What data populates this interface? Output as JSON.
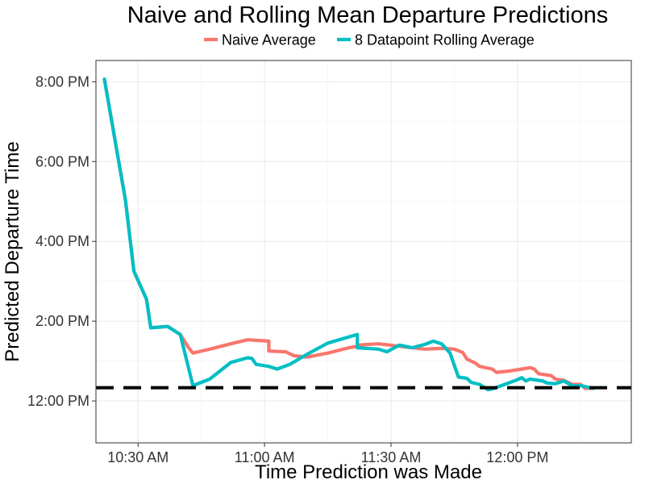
{
  "chart_data": {
    "type": "line",
    "title": "Naive and Rolling Mean Departure Predictions",
    "xlabel": "Time Prediction was Made",
    "ylabel": "Predicted Departure Time",
    "x_axis": {
      "unit": "clock time",
      "range": [
        "10:20 AM",
        "12:27 PM"
      ],
      "ticks": [
        "10:30 AM",
        "11:00 AM",
        "11:30 AM",
        "12:00 PM"
      ]
    },
    "y_axis": {
      "unit": "clock time",
      "range": [
        "10:57 AM",
        "8:32 PM"
      ],
      "ticks": [
        "12:00 PM",
        "2:00 PM",
        "4:00 PM",
        "6:00 PM",
        "8:00 PM"
      ]
    },
    "grid": true,
    "legend_position": "top",
    "reference_line": {
      "y": "12:20 PM",
      "style": "dashed",
      "color": "#000000"
    },
    "series": [
      {
        "name": "Naive Average",
        "color": "#F8766D",
        "points": [
          [
            "10:22 AM",
            "8:04 PM"
          ],
          [
            "10:27 AM",
            "5:02 PM"
          ],
          [
            "10:29 AM",
            "3:15 PM"
          ],
          [
            "10:32 AM",
            "2:33 PM"
          ],
          [
            "10:33 AM",
            "1:50 PM"
          ],
          [
            "10:37 AM",
            "1:52 PM"
          ],
          [
            "10:40 AM",
            "1:40 PM"
          ],
          [
            "10:42 AM",
            "1:20 PM"
          ],
          [
            "10:43 AM",
            "1:12 PM"
          ],
          [
            "10:47 AM",
            "1:18 PM"
          ],
          [
            "10:52 AM",
            "1:26 PM"
          ],
          [
            "10:56 AM",
            "1:32 PM"
          ],
          [
            "11:01 AM",
            "1:30 PM"
          ],
          [
            "11:01 AM",
            "1:15 PM"
          ],
          [
            "11:05 AM",
            "1:14 PM"
          ],
          [
            "11:07 AM",
            "1:08 PM"
          ],
          [
            "11:10 AM",
            "1:06 PM"
          ],
          [
            "11:15 AM",
            "1:12 PM"
          ],
          [
            "11:20 AM",
            "1:20 PM"
          ],
          [
            "11:22 AM",
            "1:22 PM"
          ],
          [
            "11:22 AM",
            "1:24 PM"
          ],
          [
            "11:27 AM",
            "1:26 PM"
          ],
          [
            "11:31 AM",
            "1:23 PM"
          ],
          [
            "11:35 AM",
            "1:20 PM"
          ],
          [
            "11:38 AM",
            "1:18 PM"
          ],
          [
            "11:42 AM",
            "1:19 PM"
          ],
          [
            "11:45 AM",
            "1:18 PM"
          ],
          [
            "11:47 AM",
            "1:13 PM"
          ],
          [
            "11:48 AM",
            "1:03 PM"
          ],
          [
            "11:50 AM",
            "0:57 PM"
          ],
          [
            "11:51 AM",
            "0:52 PM"
          ],
          [
            "11:54 AM",
            "0:48 PM"
          ],
          [
            "11:55 AM",
            "0:43 PM"
          ],
          [
            "11:58 AM",
            "0:45 PM"
          ],
          [
            "12:01 PM",
            "0:48 PM"
          ],
          [
            "12:03 PM",
            "0:50 PM"
          ],
          [
            "12:04 PM",
            "0:48 PM"
          ],
          [
            "12:05 PM",
            "0:41 PM"
          ],
          [
            "12:08 PM",
            "0:38 PM"
          ],
          [
            "12:09 PM",
            "0:33 PM"
          ],
          [
            "12:11 PM",
            "0:31 PM"
          ],
          [
            "12:13 PM",
            "0:25 PM"
          ],
          [
            "12:15 PM",
            "0:25 PM"
          ],
          [
            "12:16 PM",
            "0:19 PM"
          ],
          [
            "12:18 PM",
            "0:19 PM"
          ]
        ]
      },
      {
        "name": "8 Datapoint Rolling Average",
        "color": "#00BFC4",
        "points": [
          [
            "10:22 AM",
            "8:04 PM"
          ],
          [
            "10:27 AM",
            "5:02 PM"
          ],
          [
            "10:29 AM",
            "3:15 PM"
          ],
          [
            "10:32 AM",
            "2:33 PM"
          ],
          [
            "10:33 AM",
            "1:50 PM"
          ],
          [
            "10:37 AM",
            "1:52 PM"
          ],
          [
            "10:40 AM",
            "1:40 PM"
          ],
          [
            "10:43 AM",
            "0:23 PM"
          ],
          [
            "10:47 AM",
            "0:33 PM"
          ],
          [
            "10:52 AM",
            "0:58 PM"
          ],
          [
            "10:56 AM",
            "1:05 PM"
          ],
          [
            "10:57 AM",
            "1:04 PM"
          ],
          [
            "10:58 AM",
            "0:55 PM"
          ],
          [
            "11:01 AM",
            "0:52 PM"
          ],
          [
            "11:03 AM",
            "0:48 PM"
          ],
          [
            "11:06 AM",
            "0:55 PM"
          ],
          [
            "11:10 AM",
            "1:10 PM"
          ],
          [
            "11:15 AM",
            "1:27 PM"
          ],
          [
            "11:22 AM",
            "1:40 PM"
          ],
          [
            "11:22 AM",
            "1:20 PM"
          ],
          [
            "11:27 AM",
            "1:18 PM"
          ],
          [
            "11:29 AM",
            "1:14 PM"
          ],
          [
            "11:32 AM",
            "1:24 PM"
          ],
          [
            "11:35 AM",
            "1:20 PM"
          ],
          [
            "11:38 AM",
            "1:25 PM"
          ],
          [
            "11:40 AM",
            "1:30 PM"
          ],
          [
            "11:42 AM",
            "1:26 PM"
          ],
          [
            "11:44 AM",
            "1:12 PM"
          ],
          [
            "11:46 AM",
            "0:36 PM"
          ],
          [
            "11:48 AM",
            "0:34 PM"
          ],
          [
            "11:49 AM",
            "0:28 PM"
          ],
          [
            "11:51 AM",
            "0:25 PM"
          ],
          [
            "11:53 AM",
            "0:17 PM"
          ],
          [
            "11:54 AM",
            "0:18 PM"
          ],
          [
            "11:57 AM",
            "0:25 PM"
          ],
          [
            "12:00 PM",
            "0:32 PM"
          ],
          [
            "12:01 PM",
            "0:35 PM"
          ],
          [
            "12:02 PM",
            "0:30 PM"
          ],
          [
            "12:03 PM",
            "0:33 PM"
          ],
          [
            "12:06 PM",
            "0:30 PM"
          ],
          [
            "12:07 PM",
            "0:27 PM"
          ],
          [
            "12:09 PM",
            "0:26 PM"
          ],
          [
            "12:11 PM",
            "0:30 PM"
          ],
          [
            "12:13 PM",
            "0:23 PM"
          ],
          [
            "12:15 PM",
            "0:23 PM"
          ],
          [
            "12:18 PM",
            "0:19 PM"
          ]
        ]
      }
    ]
  }
}
